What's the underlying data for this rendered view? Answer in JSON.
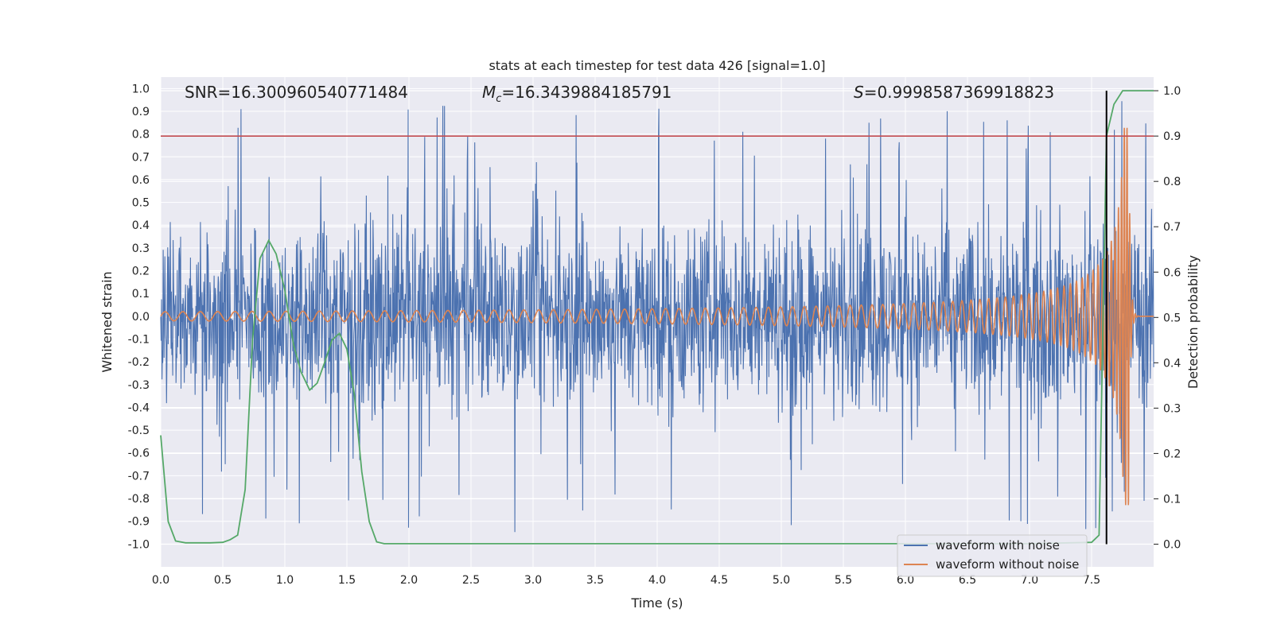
{
  "chart_data": {
    "type": "line",
    "title": "stats at each timestep for test data 426 [signal=1.0]",
    "xlabel": "Time (s)",
    "ylabel": "Whitened strain",
    "y2label": "Detection probability",
    "xlim": [
      0.0,
      8.0
    ],
    "ylim": [
      -1.1,
      1.05
    ],
    "y2lim": [
      -0.05,
      1.03
    ],
    "xticks": [
      "0.0",
      "0.5",
      "1.0",
      "1.5",
      "2.0",
      "2.5",
      "3.0",
      "3.5",
      "4.0",
      "4.5",
      "5.0",
      "5.5",
      "6.0",
      "6.5",
      "7.0",
      "7.5"
    ],
    "yticks": [
      "1.0",
      "0.9",
      "0.8",
      "0.7",
      "0.6",
      "0.5",
      "0.4",
      "0.3",
      "0.2",
      "0.1",
      "0.0",
      "-0.1",
      "-0.2",
      "-0.3",
      "-0.4",
      "-0.5",
      "-0.6",
      "-0.7",
      "-0.8",
      "-0.9",
      "-1.0"
    ],
    "y2ticks": [
      "1.0",
      "0.9",
      "0.8",
      "0.7",
      "0.6",
      "0.5",
      "0.4",
      "0.3",
      "0.2",
      "0.1",
      "0.0"
    ],
    "annotations": {
      "snr": "SNR=16.300960540771484",
      "mc_symbol": "M",
      "mc_subscript": "c",
      "mc_value": "=16.3439884185791",
      "s_symbol": "S",
      "s_value": "=0.9998587369918823"
    },
    "threshold": {
      "value": 0.9,
      "axis": "right",
      "color": "#c44e52"
    },
    "merger_marker": {
      "time": 7.62,
      "color": "#000000"
    },
    "legend": {
      "location": "lower right",
      "entries": [
        "waveform with noise",
        "waveform without noise"
      ]
    },
    "series": [
      {
        "name": "waveform with noise",
        "color": "#4c72b0",
        "axis": "left",
        "description": "dense noisy whitened strain, envelope roughly ±0.55 with spikes up to ±0.95",
        "envelope": 0.55,
        "peak": 0.95,
        "seed": 426
      },
      {
        "name": "waveform without noise",
        "color": "#dd8452",
        "axis": "left",
        "description": "chirp: amplitude grows and frequency increases until merger near t=7.8 s",
        "t_merger": 7.8,
        "amplitude_start": 0.02,
        "amplitude_peak": 0.83,
        "frequency_start": 7,
        "frequency_end": 45
      },
      {
        "name": "detection probability",
        "color": "#55a868",
        "axis": "right",
        "x": [
          0.0,
          0.06,
          0.12,
          0.2,
          0.3,
          0.4,
          0.5,
          0.56,
          0.62,
          0.68,
          0.74,
          0.8,
          0.87,
          0.93,
          1.0,
          1.07,
          1.13,
          1.2,
          1.26,
          1.32,
          1.38,
          1.44,
          1.5,
          1.56,
          1.62,
          1.68,
          1.74,
          1.8,
          2.0,
          3.0,
          4.0,
          5.0,
          6.0,
          7.0,
          7.5,
          7.56,
          7.62,
          7.68,
          7.75,
          7.8,
          8.0
        ],
        "y": [
          0.24,
          0.05,
          0.007,
          0.003,
          0.003,
          0.003,
          0.004,
          0.01,
          0.02,
          0.12,
          0.45,
          0.63,
          0.67,
          0.64,
          0.56,
          0.44,
          0.38,
          0.34,
          0.355,
          0.4,
          0.45,
          0.465,
          0.43,
          0.33,
          0.16,
          0.05,
          0.005,
          0.001,
          0.001,
          0.001,
          0.001,
          0.001,
          0.001,
          0.001,
          0.004,
          0.02,
          0.9,
          0.97,
          1.0,
          1.0,
          1.0
        ]
      }
    ]
  }
}
